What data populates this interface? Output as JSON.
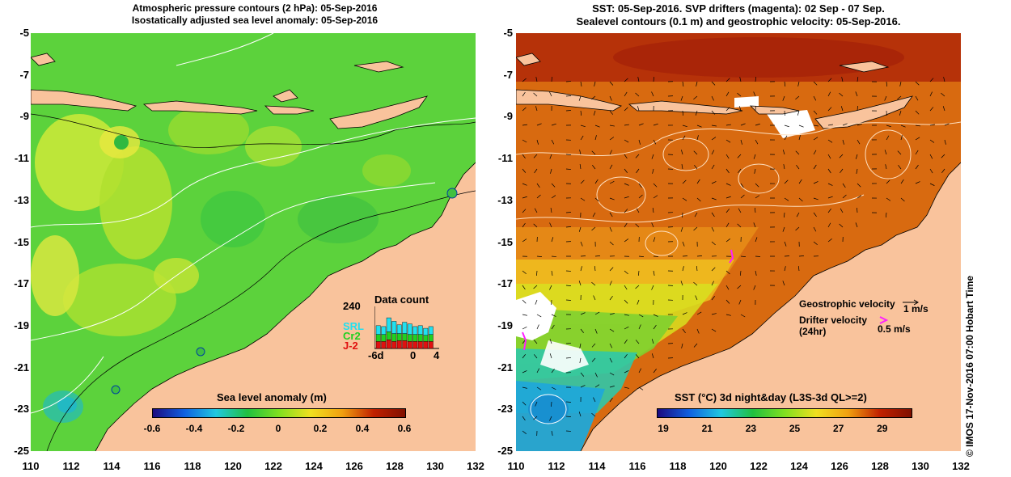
{
  "left_panel": {
    "title_line1": "Atmospheric pressure contours (2 hPa): 05-Sep-2016",
    "title_line2": "Isostatically adjusted sea level anomaly: 05-Sep-2016",
    "colorbar": {
      "label": "Sea level anomaly (m)",
      "ticks": [
        "-0.6",
        "-0.4",
        "-0.2",
        "0",
        "0.2",
        "0.4",
        "0.6"
      ],
      "colors": [
        "#1a0a80",
        "#1060e0",
        "#20c8e0",
        "#20c040",
        "#80e020",
        "#f0e020",
        "#f0a010",
        "#c02000",
        "#801000"
      ]
    },
    "data_count": {
      "title": "Data count",
      "ymax_label": "240",
      "x_labels": [
        "-6d",
        "0",
        "4"
      ],
      "legend": [
        {
          "name": "SRL",
          "color": "#20e0f0"
        },
        {
          "name": "Cr2",
          "color": "#20d020"
        },
        {
          "name": "J-2",
          "color": "#e01010"
        }
      ],
      "days": [
        {
          "srl": 50,
          "cr2": 40,
          "j2": 40
        },
        {
          "srl": 45,
          "cr2": 40,
          "j2": 40
        },
        {
          "srl": 80,
          "cr2": 45,
          "j2": 50
        },
        {
          "srl": 70,
          "cr2": 45,
          "j2": 40
        },
        {
          "srl": 50,
          "cr2": 40,
          "j2": 45
        },
        {
          "srl": 65,
          "cr2": 40,
          "j2": 45
        },
        {
          "srl": 60,
          "cr2": 40,
          "j2": 40
        },
        {
          "srl": 45,
          "cr2": 40,
          "j2": 40
        },
        {
          "srl": 50,
          "cr2": 40,
          "j2": 40
        },
        {
          "srl": 40,
          "cr2": 35,
          "j2": 40
        },
        {
          "srl": 45,
          "cr2": 40,
          "j2": 40
        }
      ]
    }
  },
  "right_panel": {
    "title_line1": "SST: 05-Sep-2016. SVP drifters (magenta): 02 Sep - 07 Sep.",
    "title_line2": "Sealevel contours (0.1 m) and geostrophic velocity: 05-Sep-2016.",
    "colorbar": {
      "label": "SST (°C) 3d night&day (L3S-3d QL>=2)",
      "ticks": [
        "19",
        "21",
        "23",
        "25",
        "27",
        "29"
      ],
      "colors": [
        "#1a0a80",
        "#1060e0",
        "#20c8e0",
        "#20c040",
        "#80e020",
        "#f0e020",
        "#f0a010",
        "#c02000",
        "#801000"
      ]
    },
    "legend": {
      "geo_label": "Geostrophic velocity",
      "geo_scale": "1 m/s",
      "drifter_label": "Drifter velocity",
      "drifter_sub": "(24hr)",
      "drifter_scale": "0.5 m/s"
    },
    "credit": "IMOS 17-Nov-2016 07:00 Hobart Time",
    "copyright_symbol": "©"
  },
  "axes": {
    "y_labels": [
      "-5",
      "-7",
      "-9",
      "-11",
      "-13",
      "-15",
      "-17",
      "-19",
      "-21",
      "-23",
      "-25"
    ],
    "x_labels": [
      "110",
      "112",
      "114",
      "116",
      "118",
      "120",
      "122",
      "124",
      "126",
      "128",
      "130",
      "132"
    ]
  }
}
